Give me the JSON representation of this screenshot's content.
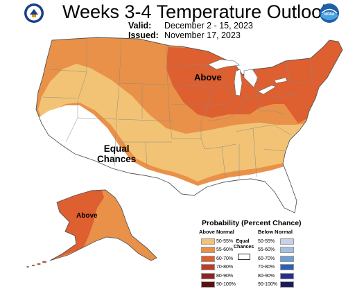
{
  "header": {
    "title": "Weeks 3-4 Temperature Outlook",
    "valid_label": "Valid:",
    "valid_dates": "December 2 - 15, 2023",
    "issued_label": "Issued:",
    "issued_date": "November 17, 2023"
  },
  "logos": {
    "left": "department-of-commerce-seal",
    "right": "noaa-logo",
    "right_text": "NOAA"
  },
  "map_labels": {
    "above": "Above",
    "equal_line1": "Equal",
    "equal_line2": "Chances",
    "alaska_above": "Above"
  },
  "legend": {
    "title": "Probability (Percent Chance)",
    "above_heading": "Above Normal",
    "below_heading": "Below Normal",
    "equal_line1": "Equal",
    "equal_line2": "Chances",
    "above_items": [
      {
        "label": "50-55%",
        "color": "#f2c374"
      },
      {
        "label": "55-60%",
        "color": "#e99148"
      },
      {
        "label": "60-70%",
        "color": "#de5f30"
      },
      {
        "label": "70-80%",
        "color": "#c33a2a"
      },
      {
        "label": "80-90%",
        "color": "#96201f"
      },
      {
        "label": "90-100%",
        "color": "#5a1010"
      }
    ],
    "below_items": [
      {
        "label": "50-55%",
        "color": "#c7d1ea"
      },
      {
        "label": "55-60%",
        "color": "#a6bfe0"
      },
      {
        "label": "60-70%",
        "color": "#6e9fd4"
      },
      {
        "label": "70-80%",
        "color": "#2d5fb6"
      },
      {
        "label": "80-90%",
        "color": "#262f8e"
      },
      {
        "label": "90-100%",
        "color": "#1c1a5e"
      }
    ]
  }
}
